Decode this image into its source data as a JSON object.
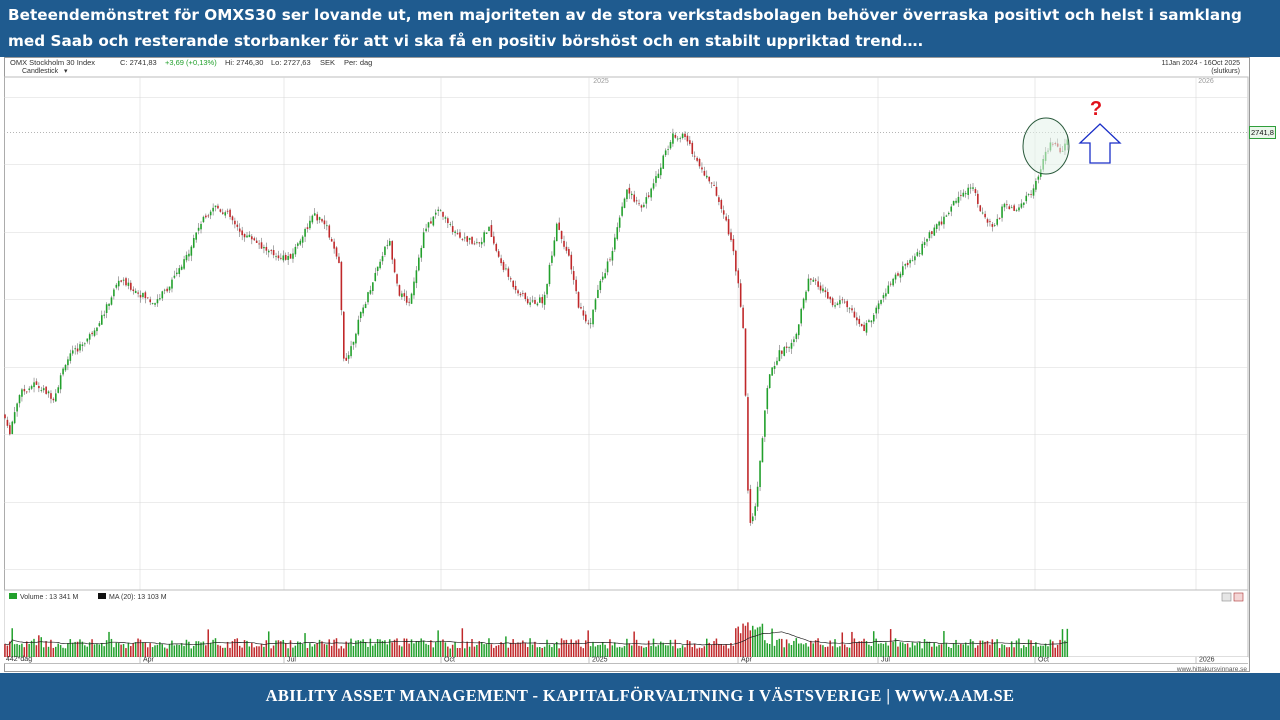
{
  "headline": {
    "line1": "Beteendemönstret för OMXS30 ser lovande ut, men majoriteten av de stora verkstadsbolagen behöver överraska positivt och helst i samklang",
    "line2": "med Saab och resterande storbanker för att vi ska få en positiv börshöst och en stabilt uppriktad trend…."
  },
  "footer": {
    "text": "ABILITY ASSET MANAGEMENT -  KAPITALFÖRVALTNING I VÄSTSVERIGE   |   WWW.AAM.SE"
  },
  "chart_header": {
    "instrument": "OMX Stockholm 30 Index",
    "close": "C: 2741,83",
    "change": "+3,69 (+0,13%)",
    "high": "Hi: 2746,30",
    "low": "Lo: 2727,63",
    "currency": "SEK",
    "period": "Per: dag",
    "chart_type": "Candlestick",
    "dropdown_glyph": "▾",
    "date_range": "11Jan 2024 - 16Oct 2025",
    "price_type": "(slutkurs)",
    "last_price_label": "2741,8",
    "year_label_2025": "2025",
    "year_label_2026": "2026",
    "question_mark": "?"
  },
  "volume_header": {
    "volume": "Volume : 13 341 M",
    "ma": "MA (20): 13 103 M",
    "bars_count": "442*dag",
    "watermark": "www.hittakursvinnare.se"
  },
  "colors": {
    "band": "#1f5b8f",
    "up": "#22a02c",
    "down": "#c0282a",
    "grid": "#d9d9d9",
    "arrow": "#1a2fc8",
    "question": "#e0101a",
    "circle_fill": "#e3f3ea",
    "circle_stroke": "#2a5a3c"
  },
  "chart_data": {
    "type": "candlestick",
    "instrument": "OMX Stockholm 30 Index",
    "y_ticks": [
      2100,
      2200,
      2300,
      2400,
      2500,
      2600,
      2700,
      2800
    ],
    "ylim": [
      2070,
      2830
    ],
    "x_labels": [
      "Apr",
      "Jul",
      "Oct",
      "2025",
      "Apr",
      "Jul",
      "Oct",
      "2026"
    ],
    "date_range": [
      "2024-01-11",
      "2025-10-16"
    ],
    "last_close": 2741.83,
    "path_points": [
      [
        0,
        2330
      ],
      [
        5,
        2300
      ],
      [
        15,
        2360
      ],
      [
        30,
        2375
      ],
      [
        50,
        2355
      ],
      [
        62,
        2410
      ],
      [
        85,
        2445
      ],
      [
        100,
        2480
      ],
      [
        115,
        2530
      ],
      [
        135,
        2510
      ],
      [
        150,
        2495
      ],
      [
        165,
        2520
      ],
      [
        180,
        2555
      ],
      [
        195,
        2610
      ],
      [
        210,
        2640
      ],
      [
        225,
        2625
      ],
      [
        235,
        2600
      ],
      [
        250,
        2590
      ],
      [
        265,
        2570
      ],
      [
        285,
        2560
      ],
      [
        300,
        2600
      ],
      [
        310,
        2625
      ],
      [
        322,
        2610
      ],
      [
        335,
        2550
      ],
      [
        340,
        2410
      ],
      [
        345,
        2420
      ],
      [
        355,
        2470
      ],
      [
        375,
        2555
      ],
      [
        385,
        2590
      ],
      [
        395,
        2510
      ],
      [
        405,
        2495
      ],
      [
        420,
        2600
      ],
      [
        435,
        2635
      ],
      [
        445,
        2610
      ],
      [
        460,
        2590
      ],
      [
        475,
        2585
      ],
      [
        485,
        2605
      ],
      [
        495,
        2560
      ],
      [
        510,
        2520
      ],
      [
        525,
        2495
      ],
      [
        540,
        2500
      ],
      [
        553,
        2615
      ],
      [
        565,
        2560
      ],
      [
        575,
        2490
      ],
      [
        585,
        2460
      ],
      [
        595,
        2520
      ],
      [
        608,
        2570
      ],
      [
        622,
        2660
      ],
      [
        638,
        2640
      ],
      [
        650,
        2670
      ],
      [
        660,
        2715
      ],
      [
        670,
        2745
      ],
      [
        682,
        2740
      ],
      [
        695,
        2700
      ],
      [
        710,
        2665
      ],
      [
        720,
        2630
      ],
      [
        728,
        2580
      ],
      [
        735,
        2520
      ],
      [
        740,
        2440
      ],
      [
        745,
        2160
      ],
      [
        752,
        2200
      ],
      [
        758,
        2290
      ],
      [
        765,
        2390
      ],
      [
        775,
        2420
      ],
      [
        790,
        2440
      ],
      [
        805,
        2530
      ],
      [
        815,
        2520
      ],
      [
        830,
        2490
      ],
      [
        840,
        2500
      ],
      [
        850,
        2475
      ],
      [
        860,
        2455
      ],
      [
        870,
        2480
      ],
      [
        885,
        2520
      ],
      [
        895,
        2540
      ],
      [
        910,
        2560
      ],
      [
        925,
        2595
      ],
      [
        940,
        2620
      ],
      [
        955,
        2655
      ],
      [
        968,
        2670
      ],
      [
        980,
        2620
      ],
      [
        990,
        2605
      ],
      [
        1000,
        2640
      ],
      [
        1012,
        2635
      ],
      [
        1025,
        2655
      ],
      [
        1035,
        2680
      ],
      [
        1042,
        2720
      ],
      [
        1050,
        2735
      ],
      [
        1057,
        2712
      ],
      [
        1064,
        2741.8
      ]
    ],
    "volume": {
      "last": "13 341 M",
      "ma20": "13 103 M"
    },
    "annotations": [
      "highlight circle around recent price action",
      "upward arrow",
      "question mark"
    ]
  }
}
